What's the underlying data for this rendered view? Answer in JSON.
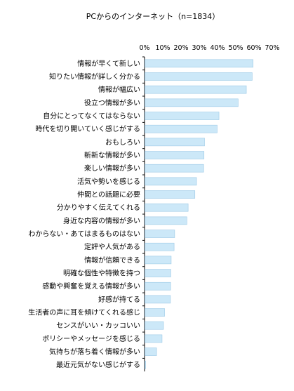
{
  "chart_data": {
    "type": "bar",
    "orientation": "horizontal",
    "title": "PCからのインターネット（n=1834）",
    "xlim": [
      0,
      70
    ],
    "x_ticks": [
      "0%",
      "10%",
      "20%",
      "30%",
      "40%",
      "50%",
      "60%",
      "70%"
    ],
    "grid": false,
    "bar_color": "#cce8f8",
    "bar_border_color": "#9cc9e6",
    "categories": [
      "情報が早くて新しい",
      "知りたい情報が詳しく分かる",
      "情報が幅広い",
      "役立つ情報が多い",
      "自分にとってなくてはならない",
      "時代を切り開いていく感じがする",
      "おもしろい",
      "斬新な情報が多い",
      "楽しい情報が多い",
      "活気や勢いを感じる",
      "仲間との話題に必要",
      "分かりやすく伝えてくれる",
      "身近な内容の情報が多い",
      "わからない・あてはまるものはない",
      "定評や人気がある",
      "情報が信頼できる",
      "明確な個性や特徴を持つ",
      "感動や興奮を覚える情報が多い",
      "好感が持てる",
      "生活者の声に耳を傾けてくれる感じ",
      "センスがいい・カッコいい",
      "ポリシーやメッセージを感じる",
      "気持ちが落ち着く情報が多い",
      "最近元気がない感じがする"
    ],
    "values": [
      59.3,
      58.8,
      55.6,
      51.1,
      40.6,
      39.6,
      32.7,
      32.4,
      32.2,
      28.3,
      27.4,
      23.7,
      23.0,
      16.3,
      16.0,
      14.4,
      14.2,
      14.1,
      14.0,
      10.8,
      10.2,
      9.4,
      6.4,
      0.4
    ]
  }
}
